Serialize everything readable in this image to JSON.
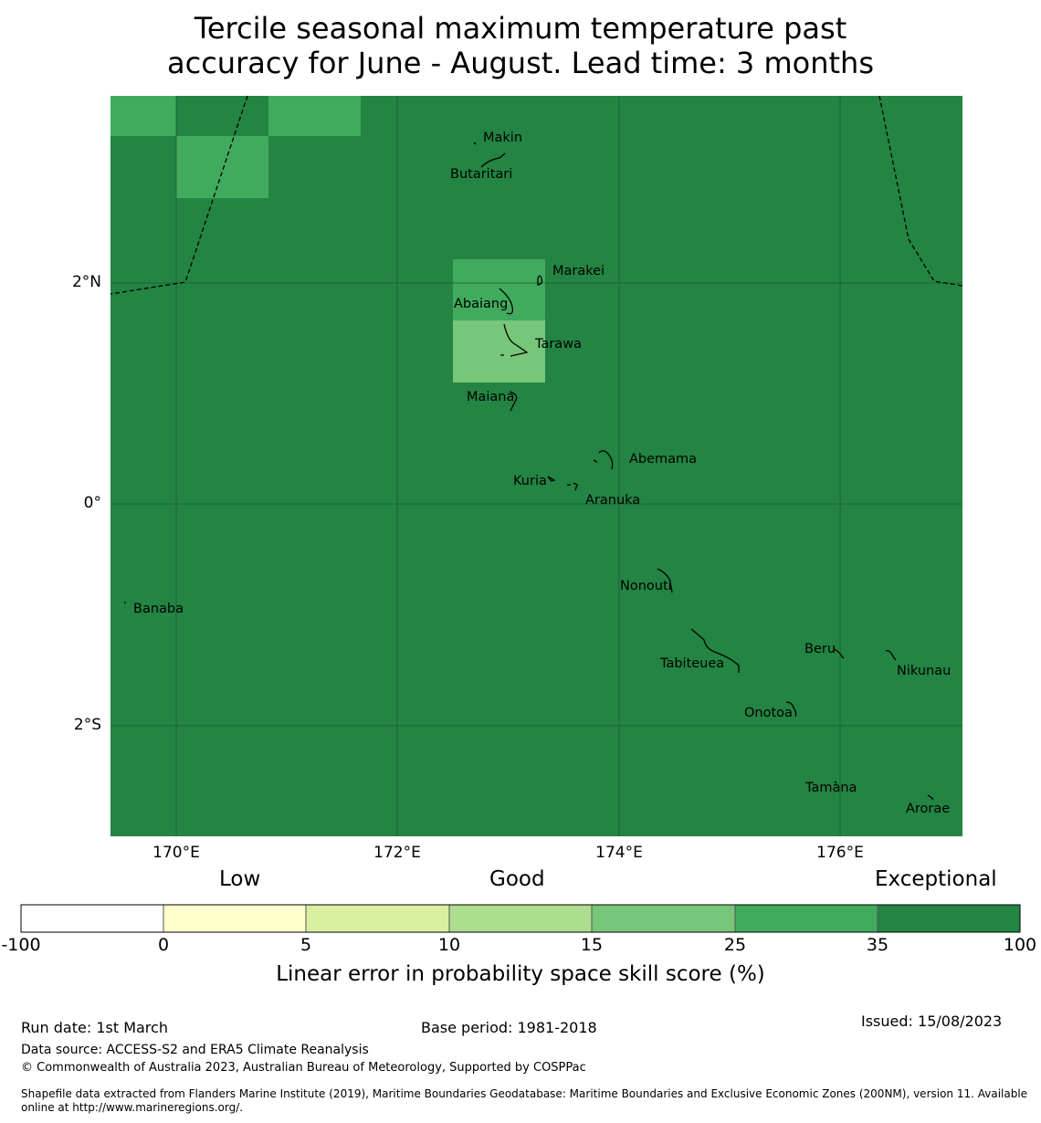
{
  "title": {
    "line1": "Tercile seasonal maximum temperature past",
    "line2": "accuracy for June - August. Lead time: 3 months"
  },
  "map": {
    "lat_labels": [
      "2°N",
      "0°",
      "2°S"
    ],
    "lon_labels": [
      "170°E",
      "172°E",
      "174°E",
      "176°E"
    ],
    "place_names": [
      "Makin",
      "Butaritari",
      "Marakei",
      "Abaiang",
      "Tarawa",
      "Maiana",
      "Abemama",
      "Kuria",
      "Aranuka",
      "Banaba",
      "Nonouti",
      "Beru",
      "Nikunau",
      "Tabiteuea",
      "Onotoa",
      "Tamana",
      "Arorae"
    ],
    "background_class": "35-100",
    "cell_classes": [
      "25-35",
      "15-25"
    ]
  },
  "legend": {
    "categories": [
      "Low",
      "Good",
      "Exceptional"
    ],
    "ticks": [
      "-100",
      "0",
      "5",
      "10",
      "15",
      "25",
      "35",
      "100"
    ],
    "colors": [
      "#ffffff",
      "#ffffcc",
      "#d9f0a3",
      "#addd8e",
      "#78c679",
      "#41ab5d",
      "#238443"
    ],
    "title": "Linear error in probability space skill score (%)"
  },
  "footer": {
    "run_date": "Run date: 1st March",
    "base_period": "Base period: 1981-2018",
    "issued": "Issued: 15/08/2023",
    "data_source": "Data source: ACCESS-S2 and ERA5 Climate Reanalysis",
    "copyright": "© Commonwealth of Australia 2023, Australian Bureau of Meteorology, Supported by COSPPac",
    "shapefile_line1": "Shapefile data extracted from Flanders Marine Institute (2019), Maritime Boundaries Geodatabase: Maritime Boundaries and Exclusive Economic Zones (200NM), version 11. Available",
    "shapefile_line2": "online at http://www.marineregions.org/."
  }
}
